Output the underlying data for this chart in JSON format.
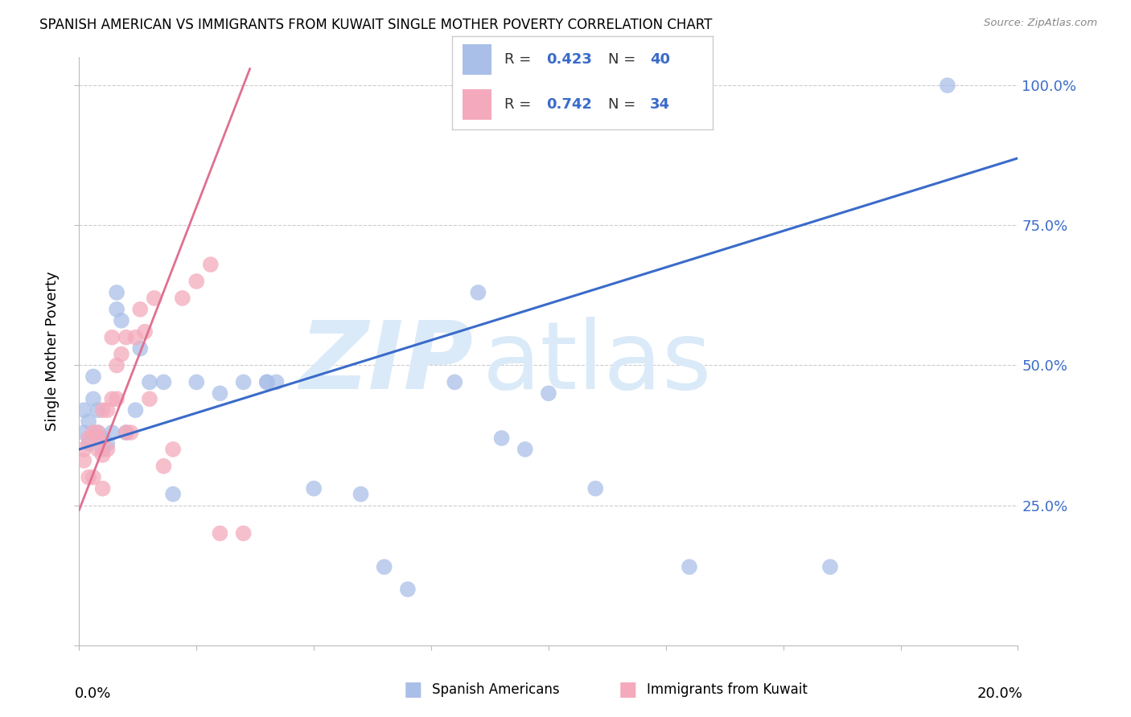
{
  "title": "SPANISH AMERICAN VS IMMIGRANTS FROM KUWAIT SINGLE MOTHER POVERTY CORRELATION CHART",
  "source": "Source: ZipAtlas.com",
  "ylabel": "Single Mother Poverty",
  "xlim": [
    0.0,
    0.2
  ],
  "ylim": [
    0.0,
    1.05
  ],
  "blue_R": 0.423,
  "blue_N": 40,
  "pink_R": 0.742,
  "pink_N": 34,
  "blue_color": "#AABFE8",
  "pink_color": "#F4AABC",
  "blue_line_color": "#3A6BC9",
  "pink_line_color": "#E07090",
  "accent_color": "#3A6BC9",
  "legend_label_blue": "Spanish Americans",
  "legend_label_pink": "Immigrants from Kuwait",
  "blue_points_x": [
    0.001,
    0.001,
    0.002,
    0.002,
    0.003,
    0.003,
    0.004,
    0.004,
    0.005,
    0.005,
    0.006,
    0.007,
    0.008,
    0.008,
    0.009,
    0.01,
    0.012,
    0.013,
    0.015,
    0.018,
    0.02,
    0.025,
    0.03,
    0.035,
    0.04,
    0.04,
    0.042,
    0.05,
    0.06,
    0.065,
    0.07,
    0.08,
    0.085,
    0.09,
    0.095,
    0.1,
    0.11,
    0.13,
    0.16,
    0.185
  ],
  "blue_points_y": [
    0.38,
    0.42,
    0.4,
    0.36,
    0.44,
    0.48,
    0.42,
    0.38,
    0.35,
    0.37,
    0.36,
    0.38,
    0.6,
    0.63,
    0.58,
    0.38,
    0.42,
    0.53,
    0.47,
    0.47,
    0.27,
    0.47,
    0.45,
    0.47,
    0.47,
    0.47,
    0.47,
    0.28,
    0.27,
    0.14,
    0.1,
    0.47,
    0.63,
    0.37,
    0.35,
    0.45,
    0.28,
    0.14,
    0.14,
    1.0
  ],
  "pink_points_x": [
    0.001,
    0.001,
    0.002,
    0.002,
    0.003,
    0.003,
    0.004,
    0.004,
    0.004,
    0.005,
    0.005,
    0.005,
    0.006,
    0.006,
    0.007,
    0.007,
    0.008,
    0.008,
    0.009,
    0.01,
    0.01,
    0.011,
    0.012,
    0.013,
    0.014,
    0.015,
    0.016,
    0.018,
    0.02,
    0.022,
    0.025,
    0.028,
    0.03,
    0.035
  ],
  "pink_points_y": [
    0.33,
    0.35,
    0.37,
    0.3,
    0.38,
    0.3,
    0.38,
    0.35,
    0.37,
    0.34,
    0.42,
    0.28,
    0.35,
    0.42,
    0.44,
    0.55,
    0.5,
    0.44,
    0.52,
    0.55,
    0.38,
    0.38,
    0.55,
    0.6,
    0.56,
    0.44,
    0.62,
    0.32,
    0.35,
    0.62,
    0.65,
    0.68,
    0.2,
    0.2
  ]
}
